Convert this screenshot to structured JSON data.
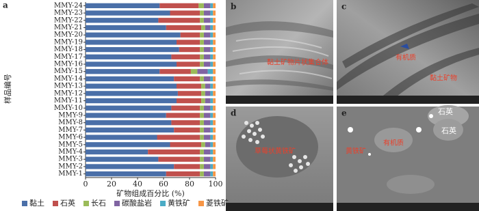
{
  "chart_data": {
    "type": "stacked_bar_horizontal",
    "panel_label": "a",
    "x_label": "矿物组成百分比 (%)",
    "y_label": "样品编号",
    "categories": [
      "MMY-1",
      "MMY-2",
      "MMY-3",
      "MMY-4",
      "MMY-5",
      "MMY-6",
      "MMY-7",
      "MMY-8",
      "MMY-9",
      "MMY-10",
      "MMY-11",
      "MMY-12",
      "MMY-13",
      "MMY-14",
      "MMY-15",
      "MMY-16",
      "MMY-17",
      "MMY-18",
      "MMY-19",
      "MMY-20",
      "MMY-21",
      "MMY-22",
      "MMY-23",
      "MMY-24"
    ],
    "series": [
      {
        "name": "黏土",
        "color": "#4a6fa8",
        "values": [
          62,
          68,
          56,
          48,
          65,
          55,
          68,
          66,
          62,
          66,
          70,
          71,
          70,
          68,
          57,
          70,
          66,
          72,
          70,
          73,
          62,
          56,
          65,
          57
        ]
      },
      {
        "name": "石英",
        "color": "#c0504d",
        "values": [
          26,
          20,
          32,
          40,
          24,
          33,
          20,
          22,
          26,
          22,
          19,
          18,
          19,
          20,
          24,
          18,
          22,
          16,
          18,
          15,
          27,
          32,
          23,
          30
        ]
      },
      {
        "name": "长石",
        "color": "#9bbb59",
        "values": [
          3,
          3,
          3,
          3,
          3,
          3,
          3,
          3,
          3,
          3,
          3,
          3,
          3,
          3,
          5,
          3,
          3,
          3,
          3,
          3,
          3,
          3,
          3,
          4
        ]
      },
      {
        "name": "碳酸盐岩",
        "color": "#8064a2",
        "values": [
          5,
          5,
          5,
          5,
          4,
          5,
          5,
          5,
          5,
          5,
          4,
          4,
          4,
          5,
          8,
          5,
          5,
          5,
          5,
          5,
          4,
          5,
          5,
          5
        ]
      },
      {
        "name": "黄铁矿",
        "color": "#4bacc6",
        "values": [
          2,
          2,
          2,
          2,
          2,
          2,
          2,
          2,
          2,
          2,
          2,
          2,
          2,
          2,
          4,
          2,
          2,
          2,
          2,
          2,
          2,
          2,
          2,
          2
        ]
      },
      {
        "name": "菱铁矿",
        "color": "#f79646",
        "values": [
          2,
          2,
          2,
          2,
          2,
          2,
          2,
          2,
          2,
          2,
          2,
          2,
          2,
          2,
          2,
          2,
          2,
          2,
          2,
          2,
          2,
          2,
          2,
          2
        ]
      }
    ],
    "xlim": [
      0,
      100
    ],
    "xticks": [
      0,
      20,
      40,
      60,
      80,
      100
    ],
    "legend": "bottom"
  },
  "panels": [
    {
      "label": "b",
      "annotations": [
        "黏土矿物片状集合体"
      ]
    },
    {
      "label": "c",
      "annotations": [
        "有机质",
        "黏土矿物"
      ]
    },
    {
      "label": "d",
      "annotations": [
        "草莓状黄铁矿"
      ]
    },
    {
      "label": "e",
      "annotations": [
        "石英",
        "石英",
        "有机质",
        "黄铁矿"
      ]
    }
  ]
}
